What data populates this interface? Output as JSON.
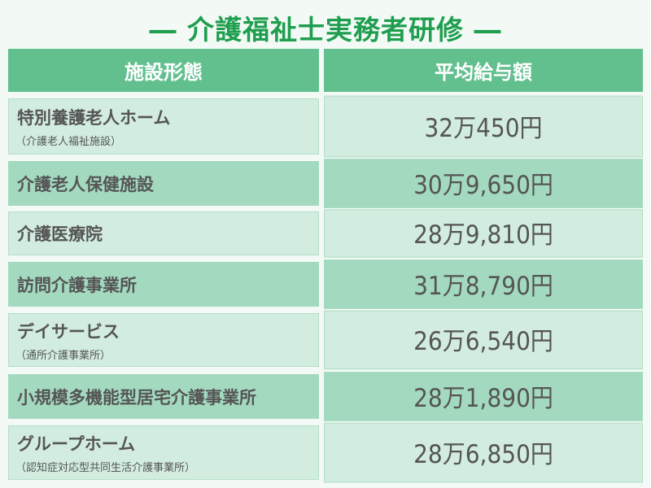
{
  "title": "― 介護福祉士実務者研修 ―",
  "table": {
    "headers": [
      "施設形態",
      "平均給与額"
    ],
    "rows": [
      {
        "name": "特別養護老人ホーム",
        "sub": "（介護老人福祉施設）",
        "salary": "32万450円"
      },
      {
        "name": "介護老人保健施設",
        "sub": "",
        "salary": "30万9,650円"
      },
      {
        "name": "介護医療院",
        "sub": "",
        "salary": "28万9,810円"
      },
      {
        "name": "訪問介護事業所",
        "sub": "",
        "salary": "31万8,790円"
      },
      {
        "name": "デイサービス",
        "sub": "（通所介護事業所）",
        "salary": "26万6,540円"
      },
      {
        "name": "小規模多機能型居宅介護事業所",
        "sub": "",
        "salary": "28万1,890円"
      },
      {
        "name": "グループホーム",
        "sub": "（認知症対応型共同生活介護事業所）",
        "salary": "28万6,850円"
      }
    ]
  },
  "colors": {
    "title": "#1e9e4e",
    "header": "#62c08f",
    "row_light": "#d2ede0",
    "row_dark": "#a3dabf"
  }
}
